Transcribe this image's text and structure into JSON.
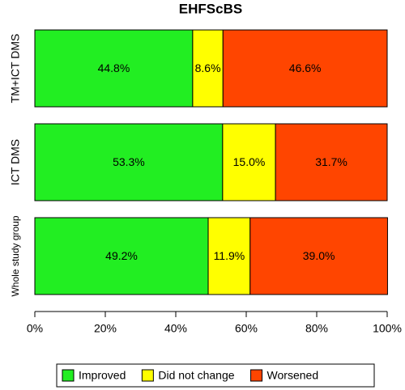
{
  "chart_data": {
    "type": "stacked-barh",
    "title": "EHFScBS",
    "categories": [
      "TM+ICT DMS",
      "ICT DMS",
      "Whole study group"
    ],
    "series": [
      {
        "name": "Improved",
        "color": "#22ee22",
        "values": [
          44.8,
          53.3,
          49.2
        ],
        "value_labels": [
          "44.8%",
          "53.3%",
          "49.2%"
        ]
      },
      {
        "name": "Did not change",
        "color": "#ffff00",
        "values": [
          8.6,
          15.0,
          11.9
        ],
        "value_labels": [
          "8.6%",
          "15.0%",
          "11.9%"
        ]
      },
      {
        "name": "Worsened",
        "color": "#ff4500",
        "values": [
          46.6,
          31.7,
          39.0
        ],
        "value_labels": [
          "46.6%",
          "31.7%",
          "39.0%"
        ]
      }
    ],
    "xlim": [
      0,
      100
    ],
    "xticks": [
      {
        "value": 0,
        "label": "0%"
      },
      {
        "value": 20,
        "label": "20%"
      },
      {
        "value": 40,
        "label": "40%"
      },
      {
        "value": 60,
        "label": "60%"
      },
      {
        "value": 80,
        "label": "80%"
      },
      {
        "value": 100,
        "label": "100%"
      }
    ],
    "legend": "bottom"
  }
}
